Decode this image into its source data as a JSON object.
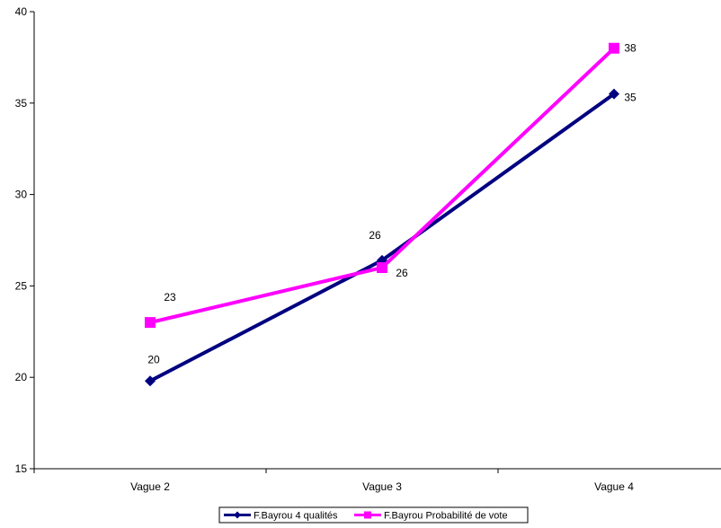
{
  "chart_data": {
    "type": "line",
    "title": "",
    "xlabel": "",
    "ylabel": "",
    "categories": [
      "Vague 2",
      "Vague 3",
      "Vague 4"
    ],
    "ylim": [
      15,
      40
    ],
    "yticks": [
      "15",
      "20",
      "25",
      "30",
      "35",
      "40"
    ],
    "grid": false,
    "legend_position": "bottom",
    "series": [
      {
        "name": "F.Bayrou 4 qualités",
        "values": [
          19.8,
          26.4,
          35.5
        ],
        "labels": [
          "20",
          "26",
          "35"
        ],
        "color": "#000080",
        "marker": "diamond"
      },
      {
        "name": "F.Bayrou Probabilité de vote",
        "values": [
          23,
          26,
          38
        ],
        "labels": [
          "23",
          "26",
          "38"
        ],
        "color": "#FF00FF",
        "marker": "square"
      }
    ]
  }
}
